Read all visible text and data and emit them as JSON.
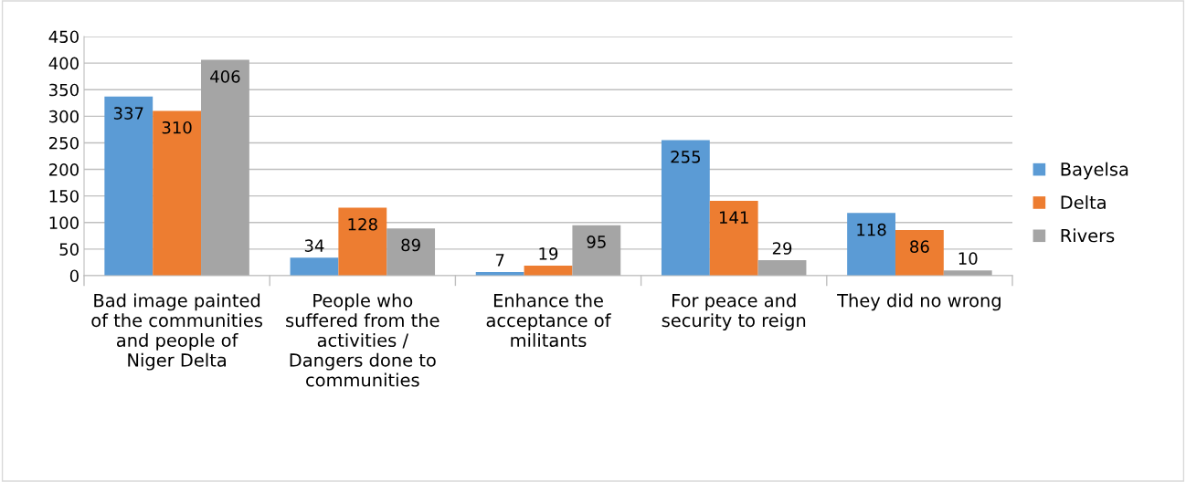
{
  "chart_data": {
    "type": "bar",
    "categories": [
      "Bad image painted of the communities and people of Niger Delta",
      "People who suffered from the activities / Dangers done to communities",
      "Enhance the acceptance of militants",
      "For peace and security to reign",
      "They did no wrong"
    ],
    "series": [
      {
        "name": "Bayelsa",
        "color": "#5b9bd5",
        "values": [
          337,
          34,
          7,
          255,
          118
        ]
      },
      {
        "name": "Delta",
        "color": "#ed7d31",
        "values": [
          310,
          128,
          19,
          141,
          86
        ]
      },
      {
        "name": "Rivers",
        "color": "#a5a5a5",
        "values": [
          406,
          89,
          95,
          29,
          10
        ]
      }
    ],
    "ylim": [
      0,
      450
    ],
    "yticks": [
      0,
      50,
      100,
      150,
      200,
      250,
      300,
      350,
      400,
      450
    ],
    "grid": "y",
    "legend": "right",
    "data_labels": true
  }
}
